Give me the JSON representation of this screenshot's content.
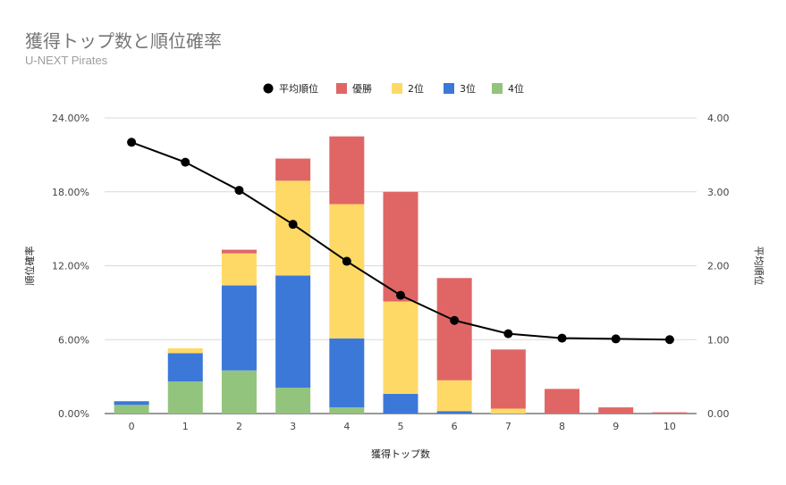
{
  "chart_data": {
    "type": "bar",
    "title": "獲得トップ数と順位確率",
    "subtitle": "U-NEXT Pirates",
    "xlabel": "獲得トップ数",
    "ylabel_left": "順位確率",
    "ylabel_right": "平均順位",
    "categories": [
      "0",
      "1",
      "2",
      "3",
      "4",
      "5",
      "6",
      "7",
      "8",
      "9",
      "10"
    ],
    "ylim_left": [
      0,
      24
    ],
    "ylim_right": [
      0,
      4
    ],
    "yticks_left": [
      "0.00%",
      "6.00%",
      "12.00%",
      "18.00%",
      "24.00%"
    ],
    "yticks_right": [
      "0.00",
      "1.00",
      "2.00",
      "3.00",
      "4.00"
    ],
    "legend_position": "top",
    "grid": true,
    "series": [
      {
        "name": "4位",
        "kind": "bar",
        "color": "#93c47d",
        "values": [
          0.7,
          2.6,
          3.5,
          2.1,
          0.5,
          0,
          0,
          0,
          0,
          0,
          0
        ]
      },
      {
        "name": "3位",
        "kind": "bar",
        "color": "#3c78d8",
        "values": [
          0.3,
          2.3,
          6.9,
          9.1,
          5.6,
          1.6,
          0.2,
          0,
          0,
          0,
          0
        ]
      },
      {
        "name": "2位",
        "kind": "bar",
        "color": "#ffd966",
        "values": [
          0,
          0.4,
          2.6,
          7.7,
          10.9,
          7.5,
          2.5,
          0.4,
          0,
          0,
          0
        ]
      },
      {
        "name": "優勝",
        "kind": "bar",
        "color": "#e06666",
        "values": [
          0,
          0,
          0.3,
          1.8,
          5.5,
          8.9,
          8.3,
          4.8,
          2.0,
          0.5,
          0.1
        ]
      },
      {
        "name": "平均順位",
        "kind": "line",
        "axis": "right",
        "color": "#000000",
        "values": [
          3.67,
          3.4,
          3.02,
          2.56,
          2.06,
          1.6,
          1.26,
          1.08,
          1.02,
          1.01,
          1.0
        ]
      }
    ],
    "legend_order": [
      "平均順位",
      "優勝",
      "2位",
      "3位",
      "4位"
    ]
  }
}
